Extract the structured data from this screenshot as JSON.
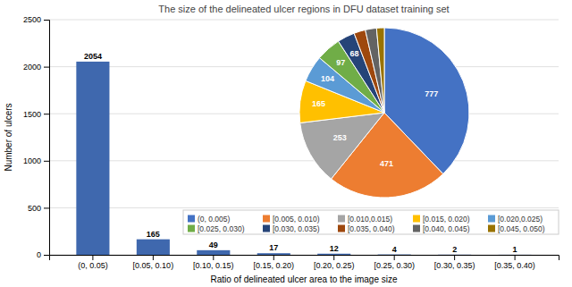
{
  "chart_data": [
    {
      "type": "bar",
      "title": "The size of the delineated ulcer regions in DFU dataset training set",
      "categories": [
        "(0, 0.05)",
        "[0.05, 0.10)",
        "[0.10, 0.15)",
        "[0.15, 0.20)",
        "[0.20, 0.25)",
        "[0.25, 0.30)",
        "[0.30, 0.35)",
        "[0.35, 0.40)"
      ],
      "values": [
        2054,
        165,
        49,
        17,
        12,
        4,
        2,
        1
      ],
      "color": "#3F68AE",
      "xlabel": "Ratio of delineated ulcer area to the image size",
      "ylabel": "Number of ulcers",
      "ylim": [
        0,
        2500
      ],
      "yticks": [
        0,
        500,
        1000,
        1500,
        2000,
        2500
      ],
      "grid": true,
      "data_labels": true
    },
    {
      "type": "pie",
      "categories": [
        "(0, 0.005)",
        "[0.005, 0.010)",
        "[0.010,0.015)",
        "[0.015, 0.020)",
        "[0.020,0.025)",
        "[0.025, 0.030)",
        "[0.030, 0.035)",
        "[0.035, 0.040)",
        "[0.040, 0.045)",
        "[0.045, 0.050)"
      ],
      "values": [
        777,
        471,
        253,
        165,
        104,
        97,
        68,
        45,
        44,
        30
      ],
      "colors": [
        "#4472C4",
        "#ED7D31",
        "#A5A5A5",
        "#FFC000",
        "#5B9BD5",
        "#70AD47",
        "#264478",
        "#9E480E",
        "#636363",
        "#997300"
      ],
      "data_labels": true,
      "value_labels": [
        "777",
        "471",
        "253",
        "165",
        "104",
        "97",
        "68",
        null,
        null,
        null
      ],
      "legend": "lower right"
    }
  ]
}
